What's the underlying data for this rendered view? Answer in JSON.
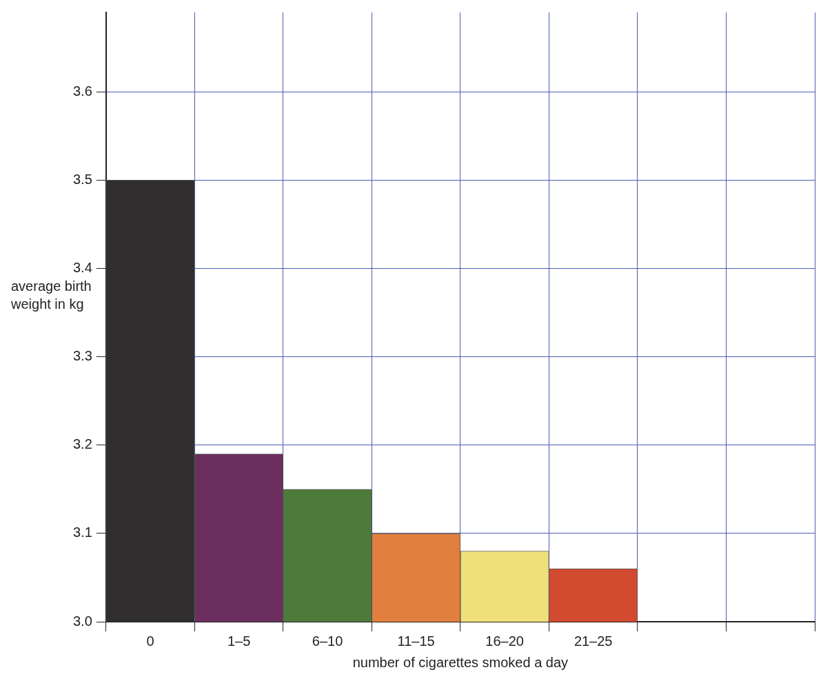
{
  "chart_data": {
    "type": "bar",
    "xlabel": "number of cigarettes smoked a day",
    "ylabel": "average birth weight in kg",
    "categories": [
      "0",
      "1–5",
      "6–10",
      "11–15",
      "16–20",
      "21–25",
      null,
      null
    ],
    "values": [
      3.5,
      3.19,
      3.15,
      3.1,
      3.08,
      3.06,
      null,
      null
    ],
    "colors": [
      "#302e2e",
      "#6b2e5f",
      "#4e7a3a",
      "#e07f3e",
      "#f0e07a",
      "#d24a2f",
      null,
      null
    ],
    "ylim": [
      3.0,
      3.69
    ],
    "yticks": [
      {
        "value": 3.0,
        "label": "3.0"
      },
      3.1,
      3.2,
      3.3,
      3.4,
      3.5,
      3.6
    ],
    "grid": true
  }
}
